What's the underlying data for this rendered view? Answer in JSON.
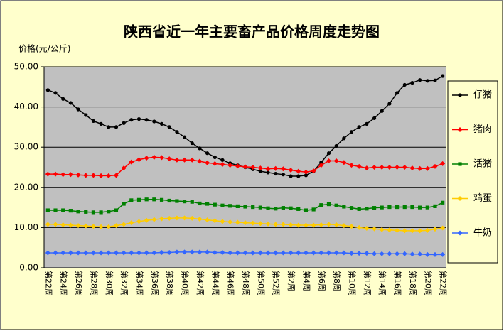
{
  "chart_data": {
    "type": "line",
    "title": "陕西省近一年主要畜产品价格周度走势图",
    "y_label": "价格(元/公斤)",
    "categories": [
      "第22周",
      null,
      "第24周",
      null,
      "第26周",
      null,
      "第28周",
      null,
      "第30周",
      null,
      "第32周",
      null,
      "第34周",
      null,
      "第36周",
      null,
      "第38周",
      null,
      "第40周",
      null,
      "第42周",
      null,
      "第44周",
      null,
      "第46周",
      null,
      "第48周",
      null,
      "第50周",
      null,
      "第52周",
      null,
      "第2周",
      null,
      "第4周",
      null,
      "第6周",
      null,
      "第8周",
      null,
      "第10周",
      null,
      "第12周",
      null,
      "第14周",
      null,
      "第16周",
      null,
      "第18周",
      null,
      "第20周",
      null,
      "第22周"
    ],
    "ylim": [
      0,
      50
    ],
    "yticks": [
      {
        "value": 0,
        "label": "0.00"
      },
      {
        "value": 10,
        "label": "10.00"
      },
      {
        "value": 20,
        "label": "20.00"
      },
      {
        "value": 30,
        "label": "30.00"
      },
      {
        "value": 40,
        "label": "40.00"
      },
      {
        "value": 50,
        "label": "50.00"
      }
    ],
    "grid": true,
    "legend": "right",
    "series": [
      {
        "name": "仔猪",
        "color": "#000000",
        "marker": "circle",
        "values": [
          44.2,
          43.5,
          42.0,
          41.0,
          39.4,
          38.0,
          36.5,
          35.8,
          35.0,
          35.0,
          36.0,
          36.8,
          37.0,
          36.8,
          36.4,
          35.8,
          35.0,
          33.8,
          32.5,
          31.0,
          29.7,
          28.5,
          27.5,
          26.8,
          26.0,
          25.5,
          25.0,
          24.5,
          24.0,
          23.7,
          23.4,
          23.2,
          22.8,
          22.8,
          23.0,
          24.0,
          26.2,
          28.5,
          30.3,
          32.2,
          33.8,
          35.0,
          35.8,
          37.2,
          39.0,
          40.8,
          43.5,
          45.5,
          46.0,
          46.7,
          46.5,
          46.6,
          47.7
        ]
      },
      {
        "name": "猪肉",
        "color": "#ff0000",
        "marker": "diamond",
        "values": [
          23.3,
          23.3,
          23.2,
          23.2,
          23.1,
          23.0,
          23.0,
          22.9,
          22.9,
          23.0,
          24.8,
          26.3,
          26.9,
          27.3,
          27.5,
          27.4,
          27.1,
          26.8,
          26.8,
          26.8,
          26.5,
          26.1,
          25.9,
          25.7,
          25.5,
          25.3,
          25.1,
          25.0,
          24.8,
          24.6,
          24.7,
          24.6,
          24.3,
          24.0,
          23.8,
          24.1,
          25.5,
          26.6,
          26.6,
          26.2,
          25.5,
          25.2,
          24.8,
          25.0,
          25.0,
          25.0,
          25.0,
          25.0,
          24.8,
          24.7,
          24.7,
          25.2,
          25.9
        ]
      },
      {
        "name": "活猪",
        "color": "#008000",
        "marker": "square",
        "values": [
          14.3,
          14.3,
          14.3,
          14.2,
          14.0,
          13.9,
          13.8,
          13.8,
          14.0,
          14.3,
          15.9,
          16.8,
          16.9,
          17.0,
          17.0,
          16.9,
          16.7,
          16.6,
          16.5,
          16.4,
          16.0,
          15.9,
          15.7,
          15.5,
          15.4,
          15.3,
          15.2,
          15.1,
          15.0,
          14.8,
          14.7,
          14.9,
          14.8,
          14.6,
          14.3,
          14.5,
          15.6,
          15.8,
          15.5,
          15.2,
          14.9,
          14.6,
          14.7,
          14.9,
          15.0,
          15.1,
          15.1,
          15.1,
          15.1,
          15.0,
          15.0,
          15.3,
          16.2
        ]
      },
      {
        "name": "鸡蛋",
        "color": "#ffcc00",
        "marker": "diamond",
        "values": [
          10.8,
          10.8,
          10.7,
          10.6,
          10.5,
          10.4,
          10.3,
          10.2,
          10.2,
          10.5,
          10.8,
          11.2,
          11.5,
          11.8,
          12.0,
          12.2,
          12.3,
          12.4,
          12.4,
          12.3,
          12.1,
          11.9,
          11.7,
          11.5,
          11.4,
          11.3,
          11.2,
          11.1,
          11.0,
          10.9,
          10.8,
          10.8,
          10.7,
          10.6,
          10.6,
          10.6,
          10.7,
          10.8,
          10.7,
          10.5,
          10.3,
          10.0,
          9.8,
          9.7,
          9.5,
          9.4,
          9.3,
          9.2,
          9.2,
          9.2,
          9.3,
          9.6,
          9.9
        ]
      },
      {
        "name": "牛奶",
        "color": "#3366ff",
        "marker": "diamond",
        "values": [
          3.7,
          3.7,
          3.7,
          3.7,
          3.7,
          3.7,
          3.7,
          3.7,
          3.7,
          3.7,
          3.7,
          3.7,
          3.7,
          3.7,
          3.7,
          3.8,
          3.8,
          3.9,
          3.9,
          3.9,
          3.9,
          3.9,
          3.8,
          3.8,
          3.7,
          3.7,
          3.7,
          3.7,
          3.7,
          3.7,
          3.7,
          3.7,
          3.7,
          3.7,
          3.7,
          3.7,
          3.7,
          3.7,
          3.7,
          3.7,
          3.6,
          3.6,
          3.6,
          3.5,
          3.5,
          3.5,
          3.5,
          3.5,
          3.4,
          3.4,
          3.3,
          3.3,
          3.3
        ]
      }
    ]
  }
}
